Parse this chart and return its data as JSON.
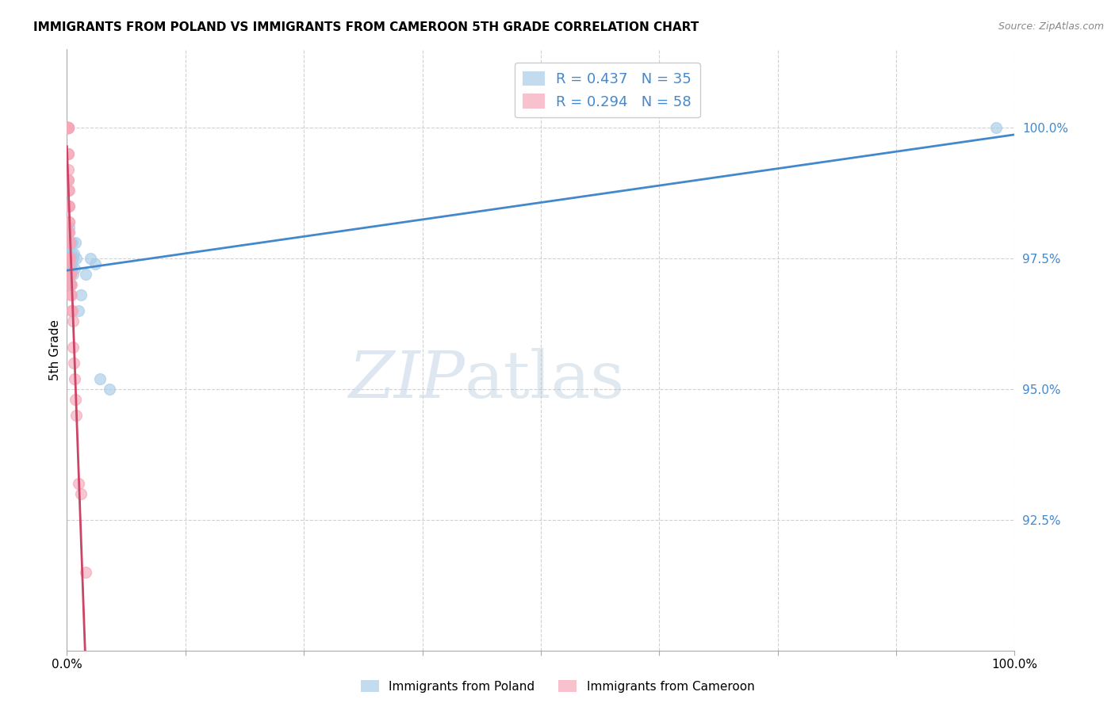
{
  "title": "IMMIGRANTS FROM POLAND VS IMMIGRANTS FROM CAMEROON 5TH GRADE CORRELATION CHART",
  "source": "Source: ZipAtlas.com",
  "ylabel": "5th Grade",
  "xlim": [
    0.0,
    100.0
  ],
  "ylim": [
    90.0,
    101.5
  ],
  "yticks": [
    92.5,
    95.0,
    97.5,
    100.0
  ],
  "ytick_labels": [
    "92.5%",
    "95.0%",
    "97.5%",
    "100.0%"
  ],
  "poland_R": 0.437,
  "poland_N": 35,
  "cameroon_R": 0.294,
  "cameroon_N": 58,
  "poland_color": "#a8cce8",
  "cameroon_color": "#f4a8b8",
  "poland_line_color": "#4488cc",
  "cameroon_line_color": "#cc4466",
  "background_color": "#ffffff",
  "watermark_zip": "ZIP",
  "watermark_atlas": "atlas",
  "poland_x": [
    0.05,
    0.07,
    0.08,
    0.1,
    0.12,
    0.15,
    0.18,
    0.2,
    0.22,
    0.25,
    0.28,
    0.3,
    0.32,
    0.35,
    0.38,
    0.4,
    0.42,
    0.45,
    0.48,
    0.5,
    0.55,
    0.6,
    0.65,
    0.7,
    0.8,
    0.9,
    1.0,
    1.2,
    1.5,
    2.0,
    2.5,
    3.0,
    3.5,
    4.5,
    98.0
  ],
  "poland_y": [
    97.5,
    98.0,
    97.8,
    97.3,
    97.2,
    97.6,
    98.1,
    97.4,
    97.5,
    97.3,
    97.0,
    97.8,
    97.2,
    97.5,
    97.0,
    97.2,
    97.8,
    97.3,
    97.6,
    97.4,
    97.8,
    97.5,
    97.2,
    97.6,
    97.3,
    97.8,
    97.5,
    96.5,
    96.8,
    97.2,
    97.5,
    97.4,
    95.2,
    95.0,
    100.0
  ],
  "cameroon_x": [
    0.03,
    0.05,
    0.06,
    0.08,
    0.09,
    0.1,
    0.11,
    0.12,
    0.13,
    0.14,
    0.15,
    0.16,
    0.17,
    0.18,
    0.19,
    0.2,
    0.22,
    0.25,
    0.27,
    0.3,
    0.32,
    0.35,
    0.38,
    0.4,
    0.42,
    0.45,
    0.48,
    0.5,
    0.55,
    0.6,
    0.65,
    0.7,
    0.8,
    0.9,
    1.0,
    1.2,
    1.5,
    2.0,
    0.05,
    0.07,
    0.09,
    0.11,
    0.13,
    0.15,
    0.17,
    0.2,
    0.25,
    0.3,
    0.35,
    0.04,
    0.06,
    0.08,
    0.12,
    0.18,
    0.22,
    0.28,
    0.32,
    0.1
  ],
  "cameroon_y": [
    100.0,
    100.0,
    100.0,
    100.0,
    100.0,
    100.0,
    100.0,
    100.0,
    100.0,
    99.5,
    99.2,
    99.0,
    98.8,
    98.5,
    98.5,
    98.2,
    98.0,
    97.8,
    97.8,
    97.5,
    97.5,
    97.3,
    97.2,
    97.2,
    97.0,
    97.0,
    96.8,
    96.5,
    96.5,
    96.3,
    95.8,
    95.5,
    95.2,
    94.8,
    94.5,
    93.2,
    93.0,
    91.5,
    100.0,
    100.0,
    100.0,
    100.0,
    100.0,
    99.0,
    98.5,
    98.0,
    97.5,
    97.0,
    96.8,
    100.0,
    100.0,
    100.0,
    99.5,
    98.8,
    98.2,
    97.8,
    97.2,
    97.5
  ],
  "poland_trend_x": [
    0.0,
    100.0
  ],
  "cameroon_trend_x": [
    0.0,
    2.0
  ]
}
